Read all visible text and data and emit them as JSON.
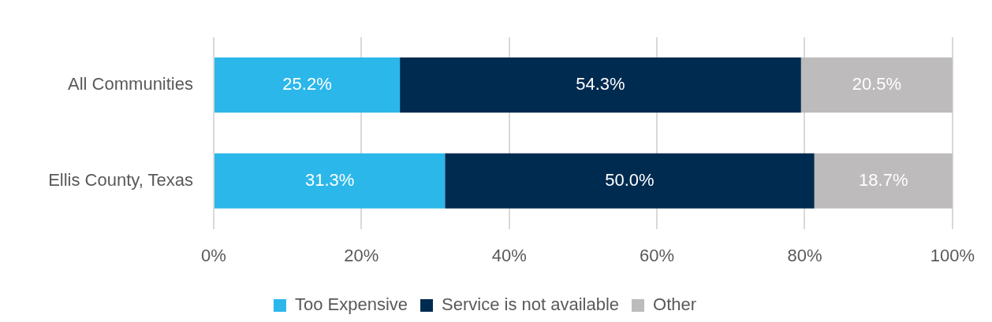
{
  "chart_data": {
    "type": "bar",
    "orientation": "horizontal",
    "stacked": true,
    "categories": [
      "All Communities",
      "Ellis County, Texas"
    ],
    "series": [
      {
        "name": "Too Expensive",
        "color": "#2cb7ea",
        "values": [
          25.2,
          31.3
        ],
        "value_labels": [
          "25.2%",
          "31.3%"
        ]
      },
      {
        "name": "Service is not available",
        "color": "#002b50",
        "values": [
          54.3,
          50.0
        ],
        "value_labels": [
          "54.3%",
          "50.0%"
        ]
      },
      {
        "name": "Other",
        "color": "#bdbbbb",
        "values": [
          20.5,
          18.7
        ],
        "value_labels": [
          "20.5%",
          "18.7%"
        ]
      }
    ],
    "xlim": [
      0,
      100
    ],
    "xticks": [
      {
        "value": 0,
        "label": "0%"
      },
      {
        "value": 20,
        "label": "20%"
      },
      {
        "value": 40,
        "label": "40%"
      },
      {
        "value": 60,
        "label": "60%"
      },
      {
        "value": 80,
        "label": "80%"
      },
      {
        "value": 100,
        "label": "100%"
      }
    ],
    "grid": "x",
    "legend": "bottom"
  }
}
